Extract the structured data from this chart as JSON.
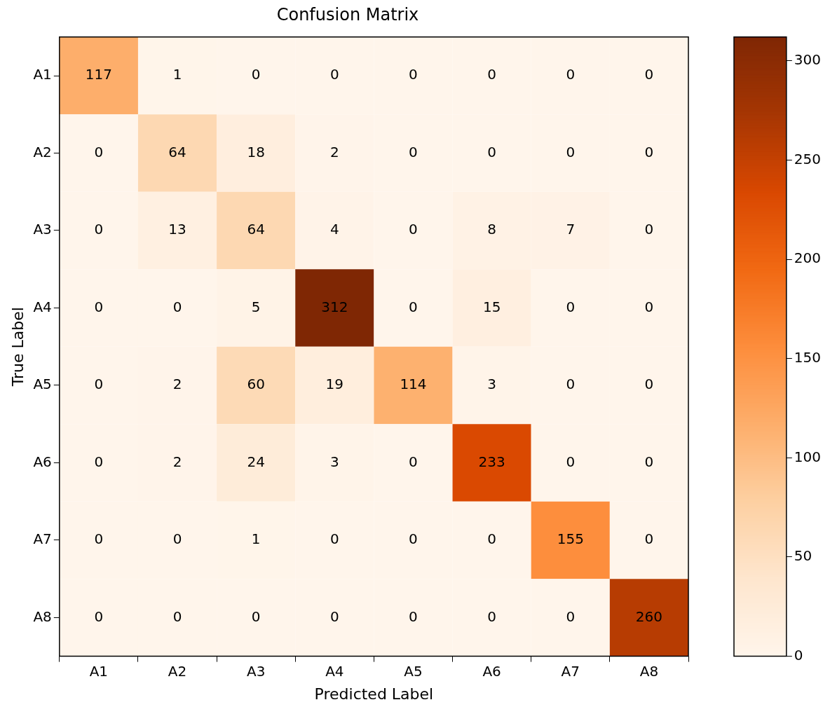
{
  "chart_data": {
    "type": "heatmap",
    "title": "Confusion Matrix",
    "xlabel": "Predicted Label",
    "ylabel": "True Label",
    "categories": [
      "A1",
      "A2",
      "A3",
      "A4",
      "A5",
      "A6",
      "A7",
      "A8"
    ],
    "y_categories": [
      "A1",
      "A2",
      "A3",
      "A4",
      "A5",
      "A6",
      "A7",
      "A8"
    ],
    "cells": [
      [
        117,
        1,
        0,
        0,
        0,
        0,
        0,
        0
      ],
      [
        0,
        64,
        18,
        2,
        0,
        0,
        0,
        0
      ],
      [
        0,
        13,
        64,
        4,
        0,
        8,
        7,
        0
      ],
      [
        0,
        0,
        5,
        312,
        0,
        15,
        0,
        0
      ],
      [
        0,
        2,
        60,
        19,
        114,
        3,
        0,
        0
      ],
      [
        0,
        2,
        24,
        3,
        0,
        233,
        0,
        0
      ],
      [
        0,
        0,
        1,
        0,
        0,
        0,
        155,
        0
      ],
      [
        0,
        0,
        0,
        0,
        0,
        0,
        0,
        260
      ]
    ],
    "clim": [
      0,
      312
    ],
    "cticks": [
      0,
      50,
      100,
      150,
      200,
      250,
      300
    ],
    "data_labels": true,
    "grid": false,
    "legend": false
  }
}
